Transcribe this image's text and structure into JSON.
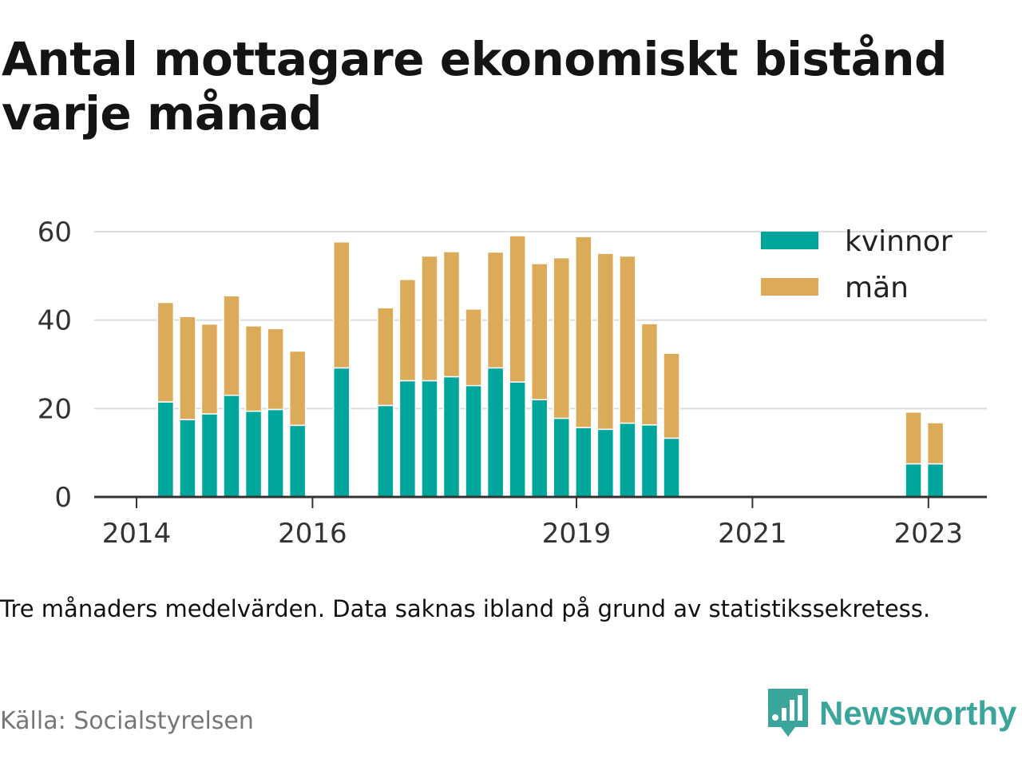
{
  "title": "Antal mottagare ekonomiskt bistånd varje månad",
  "note": "Tre månaders medelvärden. Data saknas ibland på grund av statistikssekretess.",
  "source": "Källa: Socialstyrelsen",
  "brand": {
    "name": "Newsworthy",
    "icon": "newsworthy-logo-icon",
    "color": "#3aa59a"
  },
  "colors": {
    "kvinnor": "#00a69b",
    "man": "#dbab5a",
    "grid": "#dddddd",
    "axis": "#333333"
  },
  "chart_data": {
    "type": "bar",
    "stacked": true,
    "x_unit": "year (decimal)",
    "x_ticks": [
      2014,
      2016,
      2019,
      2021,
      2023
    ],
    "x_tick_labels": [
      "2014",
      "2016",
      "2019",
      "2021",
      "2023"
    ],
    "ylim": [
      0,
      60
    ],
    "y_ticks": [
      0,
      20,
      40,
      60
    ],
    "grid": true,
    "legend_position": "top-right",
    "x": [
      2014.33,
      2014.58,
      2014.83,
      2015.08,
      2015.33,
      2015.58,
      2015.83,
      2016.33,
      2016.83,
      2017.08,
      2017.33,
      2017.58,
      2017.83,
      2018.08,
      2018.33,
      2018.58,
      2018.83,
      2019.08,
      2019.33,
      2019.58,
      2019.83,
      2020.08,
      2022.83,
      2023.08
    ],
    "series": [
      {
        "name": "kvinnor",
        "color": "#00a69b",
        "values": [
          21.5,
          17.5,
          18.8,
          23,
          19.4,
          19.8,
          16.2,
          29.2,
          20.7,
          26.3,
          26.3,
          27.2,
          25.2,
          29.2,
          26,
          22,
          17.8,
          15.7,
          15.3,
          16.7,
          16.3,
          13.3,
          7.5,
          7.5
        ]
      },
      {
        "name": "män",
        "color": "#dbab5a",
        "values": [
          22.5,
          23.3,
          20.3,
          22.5,
          19.3,
          18.3,
          16.8,
          28.5,
          22.1,
          22.9,
          28.2,
          28.3,
          17.3,
          26.2,
          33.1,
          30.8,
          36.3,
          43.2,
          39.8,
          37.8,
          22.9,
          19.2,
          11.7,
          9.3
        ]
      }
    ]
  }
}
